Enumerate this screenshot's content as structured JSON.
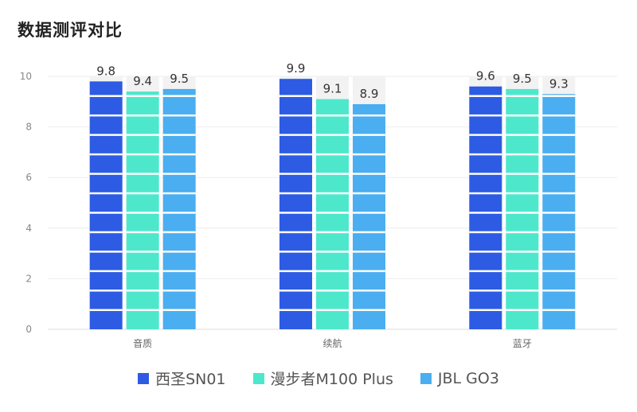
{
  "chart_data": {
    "type": "bar",
    "title": "数据测评对比",
    "categories": [
      "音质",
      "续航",
      "蓝牙"
    ],
    "series": [
      {
        "name": "西圣SN01",
        "values": [
          9.8,
          9.9,
          9.6
        ],
        "color": "#2d5be3"
      },
      {
        "name": "漫步者M100 Plus",
        "values": [
          9.4,
          9.1,
          9.5
        ],
        "color": "#4de8cc"
      },
      {
        "name": "JBL GO3",
        "values": [
          9.5,
          8.9,
          9.3
        ],
        "color": "#4aaef0"
      }
    ],
    "ylim": [
      0,
      10
    ],
    "yticks": [
      0,
      2,
      4,
      6,
      8,
      10
    ],
    "grid": true,
    "legend_position": "bottom",
    "track_color": "#f2f2f2"
  }
}
